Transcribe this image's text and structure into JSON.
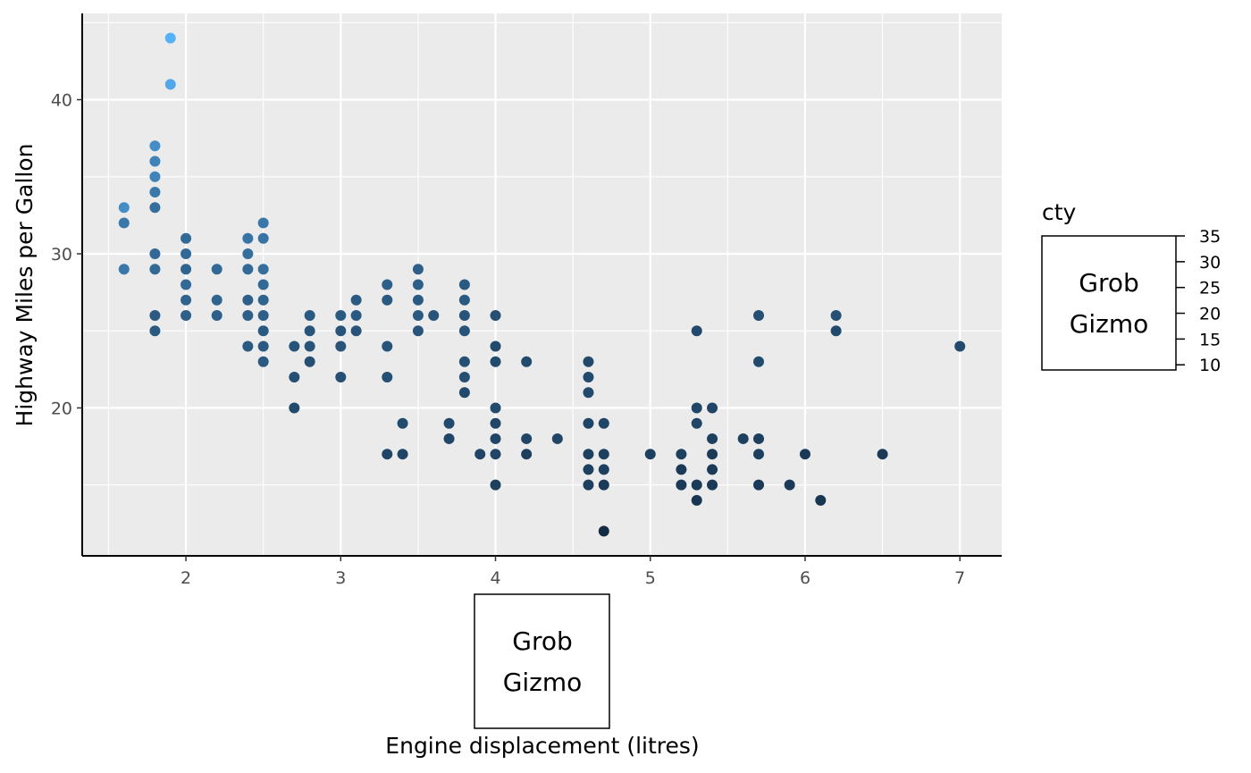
{
  "chart_data": {
    "type": "scatter",
    "xlabel": "Engine displacement (litres)",
    "ylabel": "Highway Miles per Gallon",
    "xlim": [
      1.33,
      7.27
    ],
    "ylim": [
      10.4,
      45.6
    ],
    "x_ticks": [
      2,
      3,
      4,
      5,
      6,
      7
    ],
    "y_ticks": [
      20,
      30,
      40
    ],
    "grid": true,
    "colors": {
      "panel": "#ebebeb",
      "grid_major": "#ffffff",
      "low": "#132B43",
      "high": "#56B1F7"
    },
    "legend": {
      "title": "cty",
      "placement": "right",
      "ticks": [
        10,
        15,
        20,
        25,
        30,
        35
      ],
      "range": [
        9,
        35
      ],
      "guide_text": [
        "Grob",
        "Gizmo"
      ]
    },
    "x_guide_text": [
      "Grob",
      "Gizmo"
    ],
    "points": [
      [
        1.6,
        33,
        28
      ],
      [
        1.6,
        32,
        24
      ],
      [
        1.6,
        29,
        24
      ],
      [
        1.8,
        37,
        28
      ],
      [
        1.8,
        36,
        26
      ],
      [
        1.8,
        35,
        26
      ],
      [
        1.8,
        34,
        24
      ],
      [
        1.8,
        33,
        22
      ],
      [
        1.8,
        30,
        21
      ],
      [
        1.8,
        29,
        21
      ],
      [
        1.8,
        26,
        18
      ],
      [
        1.8,
        25,
        18
      ],
      [
        1.9,
        44,
        35
      ],
      [
        1.9,
        41,
        33
      ],
      [
        2.0,
        31,
        21
      ],
      [
        2.0,
        30,
        21
      ],
      [
        2.0,
        29,
        20
      ],
      [
        2.0,
        28,
        21
      ],
      [
        2.0,
        27,
        20
      ],
      [
        2.0,
        26,
        19
      ],
      [
        2.2,
        29,
        21
      ],
      [
        2.2,
        27,
        20
      ],
      [
        2.2,
        26,
        19
      ],
      [
        2.4,
        31,
        23
      ],
      [
        2.4,
        30,
        22
      ],
      [
        2.4,
        29,
        21
      ],
      [
        2.4,
        27,
        19
      ],
      [
        2.4,
        26,
        19
      ],
      [
        2.4,
        24,
        18
      ],
      [
        2.5,
        32,
        24
      ],
      [
        2.5,
        31,
        23
      ],
      [
        2.5,
        29,
        22
      ],
      [
        2.5,
        28,
        21
      ],
      [
        2.5,
        27,
        20
      ],
      [
        2.5,
        26,
        19
      ],
      [
        2.5,
        25,
        18
      ],
      [
        2.5,
        24,
        18
      ],
      [
        2.5,
        23,
        18
      ],
      [
        2.7,
        24,
        17
      ],
      [
        2.7,
        22,
        16
      ],
      [
        2.7,
        20,
        15
      ],
      [
        2.8,
        26,
        18
      ],
      [
        2.8,
        25,
        17
      ],
      [
        2.8,
        24,
        17
      ],
      [
        2.8,
        23,
        16
      ],
      [
        3.0,
        26,
        18
      ],
      [
        3.0,
        25,
        17
      ],
      [
        3.0,
        24,
        17
      ],
      [
        3.0,
        22,
        16
      ],
      [
        3.1,
        27,
        18
      ],
      [
        3.1,
        26,
        18
      ],
      [
        3.1,
        25,
        17
      ],
      [
        3.3,
        28,
        19
      ],
      [
        3.3,
        27,
        18
      ],
      [
        3.3,
        24,
        17
      ],
      [
        3.3,
        22,
        16
      ],
      [
        3.3,
        17,
        14
      ],
      [
        3.4,
        19,
        15
      ],
      [
        3.4,
        17,
        14
      ],
      [
        3.5,
        29,
        19
      ],
      [
        3.5,
        28,
        19
      ],
      [
        3.5,
        27,
        18
      ],
      [
        3.5,
        26,
        18
      ],
      [
        3.5,
        25,
        17
      ],
      [
        3.6,
        26,
        17
      ],
      [
        3.7,
        19,
        15
      ],
      [
        3.7,
        18,
        14
      ],
      [
        3.8,
        28,
        18
      ],
      [
        3.8,
        27,
        18
      ],
      [
        3.8,
        26,
        17
      ],
      [
        3.8,
        25,
        17
      ],
      [
        3.8,
        23,
        16
      ],
      [
        3.8,
        22,
        16
      ],
      [
        3.8,
        21,
        15
      ],
      [
        3.9,
        17,
        14
      ],
      [
        4.0,
        26,
        16
      ],
      [
        4.0,
        24,
        15
      ],
      [
        4.0,
        23,
        15
      ],
      [
        4.0,
        20,
        15
      ],
      [
        4.0,
        19,
        14
      ],
      [
        4.0,
        18,
        14
      ],
      [
        4.0,
        17,
        14
      ],
      [
        4.0,
        15,
        13
      ],
      [
        4.2,
        23,
        15
      ],
      [
        4.2,
        18,
        14
      ],
      [
        4.2,
        17,
        13
      ],
      [
        4.4,
        18,
        14
      ],
      [
        4.6,
        23,
        15
      ],
      [
        4.6,
        22,
        15
      ],
      [
        4.6,
        21,
        15
      ],
      [
        4.6,
        19,
        14
      ],
      [
        4.6,
        17,
        13
      ],
      [
        4.6,
        16,
        13
      ],
      [
        4.6,
        15,
        13
      ],
      [
        4.7,
        19,
        14
      ],
      [
        4.7,
        17,
        13
      ],
      [
        4.7,
        16,
        13
      ],
      [
        4.7,
        15,
        12
      ],
      [
        4.7,
        12,
        9
      ],
      [
        5.0,
        17,
        13
      ],
      [
        5.2,
        17,
        13
      ],
      [
        5.2,
        16,
        12
      ],
      [
        5.2,
        15,
        12
      ],
      [
        5.3,
        25,
        15
      ],
      [
        5.3,
        20,
        14
      ],
      [
        5.3,
        19,
        14
      ],
      [
        5.3,
        15,
        12
      ],
      [
        5.3,
        14,
        11
      ],
      [
        5.4,
        20,
        14
      ],
      [
        5.4,
        18,
        13
      ],
      [
        5.4,
        17,
        12
      ],
      [
        5.4,
        16,
        12
      ],
      [
        5.4,
        15,
        12
      ],
      [
        5.6,
        18,
        13
      ],
      [
        5.7,
        26,
        16
      ],
      [
        5.7,
        23,
        15
      ],
      [
        5.7,
        18,
        13
      ],
      [
        5.7,
        17,
        13
      ],
      [
        5.7,
        15,
        12
      ],
      [
        5.9,
        15,
        12
      ],
      [
        6.0,
        17,
        12
      ],
      [
        6.1,
        14,
        11
      ],
      [
        6.2,
        26,
        16
      ],
      [
        6.2,
        25,
        15
      ],
      [
        6.5,
        17,
        12
      ],
      [
        7.0,
        24,
        15
      ]
    ]
  }
}
